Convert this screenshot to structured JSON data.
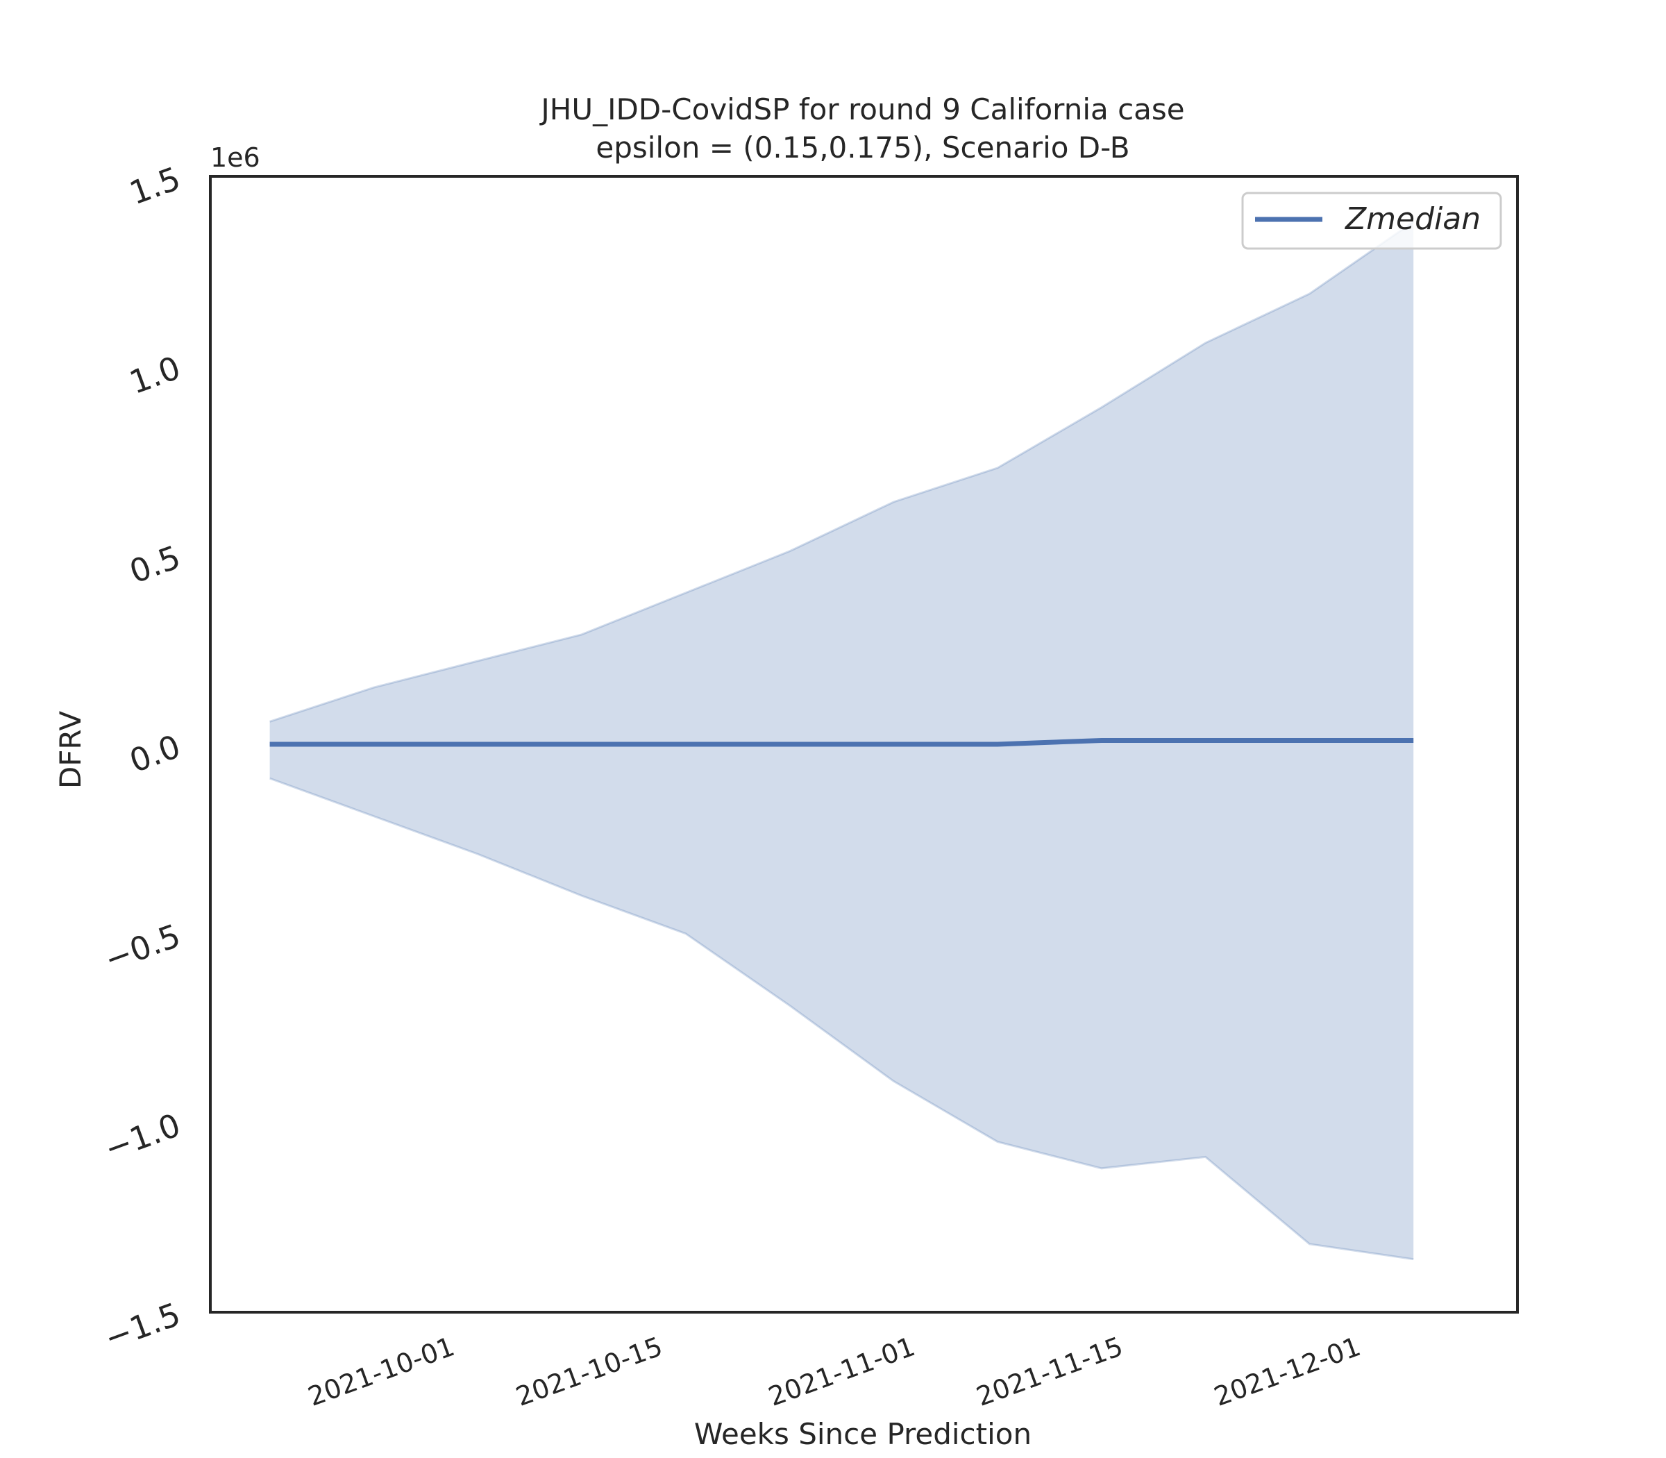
{
  "chart_data": {
    "type": "area",
    "title_line1": "JHU_IDD-CovidSP for round 9 California  case",
    "title_line2": "epsilon = (0.15,0.175), Scenario D-B",
    "xlabel": "Weeks Since Prediction",
    "ylabel": "DFRV",
    "y_offset_label": "1e6",
    "ylim": [
      -1.5,
      1.5
    ],
    "yticks": [
      -1.5,
      -1.0,
      -0.5,
      0.0,
      0.5,
      1.0,
      1.5
    ],
    "ytick_labels": [
      "−1.5",
      "−1.0",
      "−0.5",
      "0.0",
      "0.5",
      "1.0",
      "1.5"
    ],
    "xlim": [
      "2021-09-15",
      "2021-12-12"
    ],
    "xticks": [
      "2021-10-01",
      "2021-10-15",
      "2021-11-01",
      "2021-11-15",
      "2021-12-01"
    ],
    "x": [
      "2021-09-19",
      "2021-09-26",
      "2021-10-03",
      "2021-10-10",
      "2021-10-17",
      "2021-10-24",
      "2021-10-31",
      "2021-11-07",
      "2021-11-14",
      "2021-11-21",
      "2021-11-28",
      "2021-12-05"
    ],
    "series": [
      {
        "name": "Zmedian",
        "color": "#4c72b0",
        "values": [
          0.0,
          0.0,
          0.0,
          0.0,
          0.0,
          0.0,
          0.0,
          0.0,
          0.01,
          0.01,
          0.01,
          0.01
        ]
      }
    ],
    "band": {
      "color": "#4c72b0",
      "upper": [
        0.06,
        0.15,
        0.22,
        0.29,
        0.4,
        0.51,
        0.64,
        0.73,
        0.89,
        1.06,
        1.19,
        1.38
      ],
      "lower": [
        -0.09,
        -0.19,
        -0.29,
        -0.4,
        -0.5,
        -0.69,
        -0.89,
        -1.05,
        -1.12,
        -1.09,
        -1.32,
        -1.36
      ]
    },
    "legend": {
      "position": "top-right",
      "entries": [
        "Zmedian"
      ]
    },
    "grid": false
  }
}
